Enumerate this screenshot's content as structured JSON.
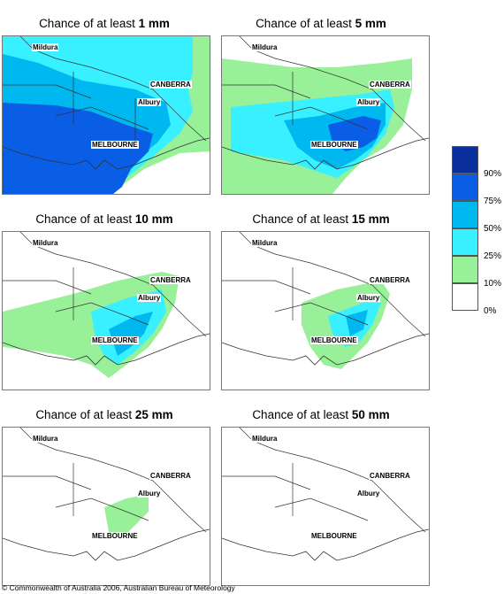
{
  "panels": [
    {
      "prefix": "Chance of at least ",
      "amount": "1 mm",
      "cities": [
        "Mildura",
        "CANBERRA",
        "Albury",
        "MELBOURNE"
      ]
    },
    {
      "prefix": "Chance of at least ",
      "amount": "5 mm",
      "cities": [
        "Mildura",
        "CANBERRA",
        "Albury",
        "MELBOURNE"
      ]
    },
    {
      "prefix": "Chance of at least ",
      "amount": "10 mm",
      "cities": [
        "Mildura",
        "CANBERRA",
        "Albury",
        "MELBOURNE"
      ]
    },
    {
      "prefix": "Chance of at least ",
      "amount": "15 mm",
      "cities": [
        "Mildura",
        "CANBERRA",
        "Albury",
        "MELBOURNE"
      ]
    },
    {
      "prefix": "Chance of at least ",
      "amount": "25 mm",
      "cities": [
        "Mildura",
        "CANBERRA",
        "Albury",
        "MELBOURNE"
      ]
    },
    {
      "prefix": "Chance of at least ",
      "amount": "50 mm",
      "cities": [
        "Mildura",
        "CANBERRA",
        "Albury",
        "MELBOURNE"
      ]
    }
  ],
  "legend": {
    "labels": [
      "90%",
      "75%",
      "50%",
      "25%",
      "10%",
      "0%"
    ],
    "colors": [
      "#0a2f9c",
      "#0a5ee6",
      "#00b8f0",
      "#38f0ff",
      "#98f098",
      "#ffffff"
    ]
  },
  "copyright": "© Commonwealth of Australia 2006, Australian Bureau of Meteorology"
}
